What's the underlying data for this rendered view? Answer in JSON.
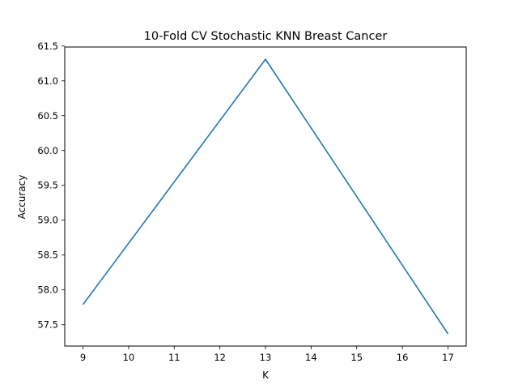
{
  "chart_data": {
    "type": "line",
    "title": "10-Fold CV Stochastic KNN Breast Cancer",
    "xlabel": "K",
    "ylabel": "Accuracy",
    "x": [
      9,
      13,
      17
    ],
    "series": [
      {
        "values": [
          57.79,
          61.31,
          57.37
        ],
        "color": "#1f77b4"
      }
    ],
    "xlim": [
      8.6,
      17.4
    ],
    "ylim": [
      57.194,
      61.486
    ],
    "xticks": [
      9,
      10,
      11,
      12,
      13,
      14,
      15,
      16,
      17
    ],
    "xtick_labels": [
      "9",
      "10",
      "11",
      "12",
      "13",
      "14",
      "15",
      "16",
      "17"
    ],
    "yticks": [
      57.5,
      58.0,
      58.5,
      59.0,
      59.5,
      60.0,
      60.5,
      61.0,
      61.5
    ],
    "ytick_labels": [
      "57.5",
      "58.0",
      "58.5",
      "59.0",
      "59.5",
      "60.0",
      "60.5",
      "61.0",
      "61.5"
    ],
    "grid": false,
    "legend": false
  }
}
